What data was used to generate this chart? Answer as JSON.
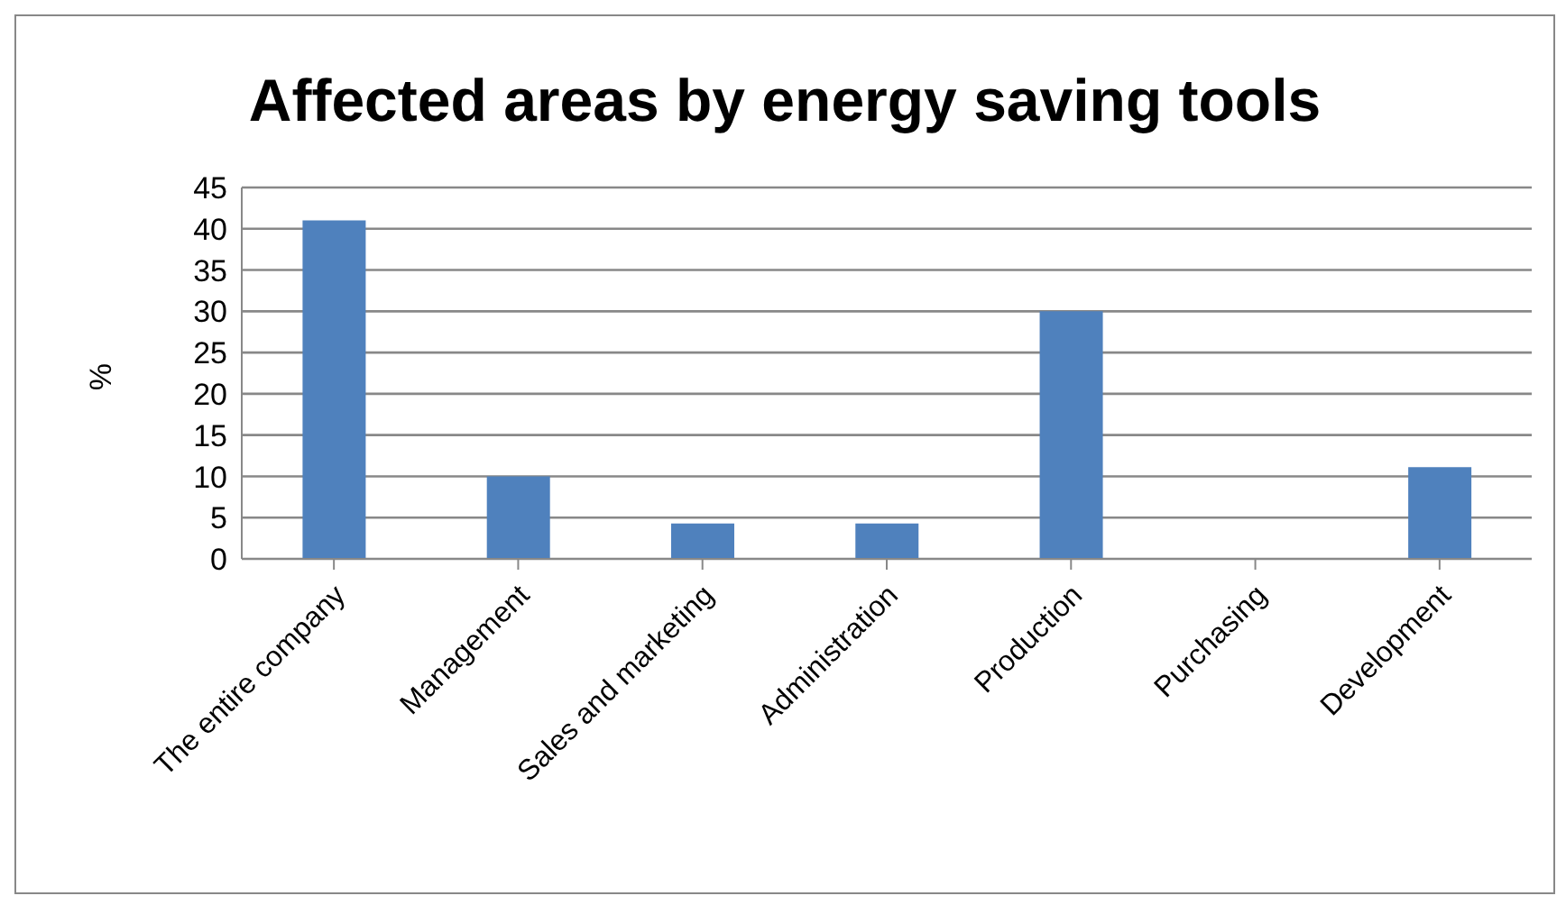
{
  "chart_data": {
    "type": "bar",
    "title": "Affected areas by energy saving tools",
    "ylabel": "%",
    "categories": [
      "The entire company",
      "Management",
      "Sales and marketing",
      "Administration",
      "Production",
      "Purchasing",
      "Development"
    ],
    "values": [
      41,
      10,
      4.3,
      4.3,
      30,
      0,
      11.1
    ],
    "color": "#4f81bd",
    "ylim": [
      0,
      45
    ],
    "yticks": [
      0,
      5,
      10,
      15,
      20,
      25,
      30,
      35,
      40,
      45
    ],
    "grid": "y",
    "legend": false
  }
}
